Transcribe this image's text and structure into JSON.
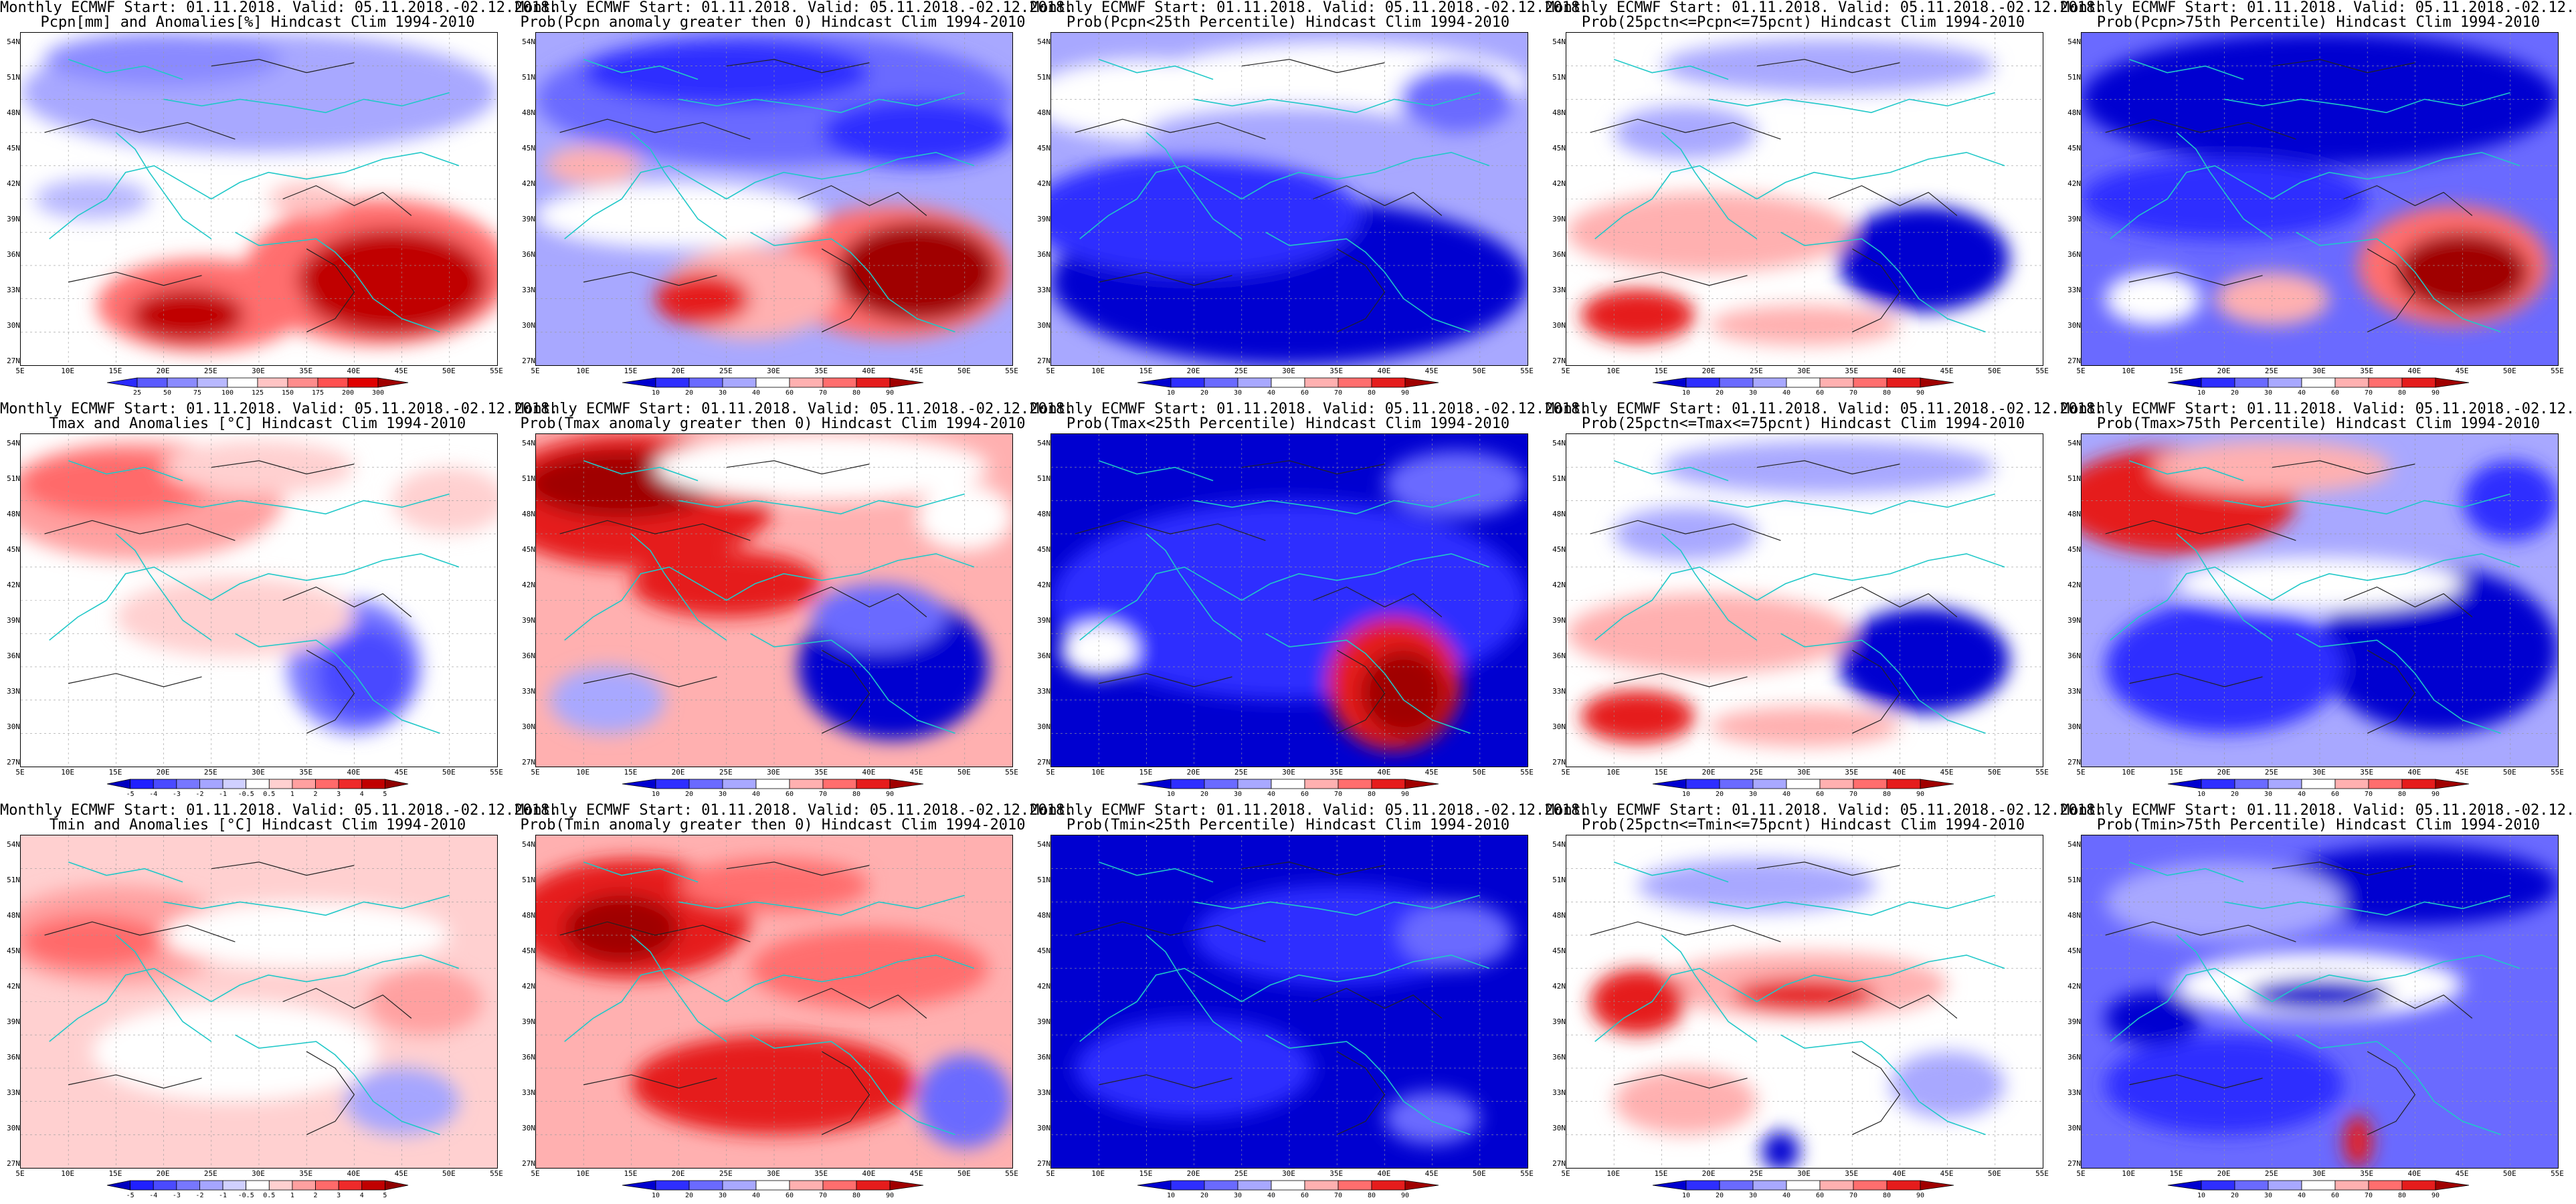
{
  "header_line": "Monthly ECMWF Start: 01.11.2018. Valid: 05.11.2018.-02.12.2018.",
  "lat_labels": [
    "54N",
    "51N",
    "48N",
    "45N",
    "42N",
    "39N",
    "36N",
    "33N",
    "30N",
    "27N"
  ],
  "lon_labels": [
    "5E",
    "10E",
    "15E",
    "20E",
    "25E",
    "30E",
    "35E",
    "40E",
    "45E",
    "50E",
    "55E"
  ],
  "colorbars": {
    "anom_pcpn": {
      "labels": [
        "25",
        "50",
        "75",
        "100",
        "125",
        "150",
        "175",
        "200",
        "300"
      ],
      "colors": [
        "#2a2aff",
        "#5a5aff",
        "#8a8aff",
        "#b8b8ff",
        "#ffffff",
        "#ffc4c4",
        "#ff8c8c",
        "#ff5050",
        "#e00000",
        "#a00000"
      ]
    },
    "prob": {
      "labels": [
        "10",
        "20",
        "30",
        "40",
        "60",
        "70",
        "80",
        "90"
      ],
      "colors": [
        "#0000d0",
        "#2e2eff",
        "#6a6aff",
        "#a8a8ff",
        "#ffffff",
        "#ffb0b0",
        "#ff6e6e",
        "#e51c1c",
        "#a00000"
      ]
    },
    "anom_t": {
      "labels": [
        "-5",
        "-4",
        "-3",
        "-2",
        "-1",
        "-0.5",
        "0.5",
        "1",
        "2",
        "3",
        "4",
        "5"
      ],
      "colors": [
        "#0000c0",
        "#2020ff",
        "#4a4aff",
        "#7777ff",
        "#a5a5ff",
        "#d0d0ff",
        "#ffffff",
        "#ffd0d0",
        "#ffa0a0",
        "#ff6a6a",
        "#ee2a2a",
        "#c00000",
        "#900000"
      ]
    }
  },
  "panels": [
    {
      "title": "Pcpn[mm] and Anomalies[%] Hindcast Clim 1994-2010",
      "cbar": "anom_pcpn",
      "theme": "red_south"
    },
    {
      "title": "Prob(Pcpn anomaly greater then 0) Hindcast Clim 1994-2010",
      "cbar": "prob",
      "theme": "red_south_blue_north"
    },
    {
      "title": "Prob(Pcpn<25th Percentile) Hindcast Clim 1994-2010",
      "cbar": "prob",
      "theme": "blue_south"
    },
    {
      "title": "Prob(25pctn<=Pcpn<=75pcnt) Hindcast Clim 1994-2010",
      "cbar": "prob",
      "theme": "mixed_blue_east"
    },
    {
      "title": "Prob(Pcpn>75th Percentile) Hindcast Clim 1994-2010",
      "cbar": "prob",
      "theme": "blue_north_red_se"
    },
    {
      "title": "Tmax and Anomalies [°C] Hindcast Clim 1994-2010",
      "cbar": "anom_t",
      "theme": "warm_nw_cool_se"
    },
    {
      "title": "Prob(Tmax anomaly greater then 0) Hindcast Clim 1994-2010",
      "cbar": "prob",
      "theme": "red_nw_blue_se"
    },
    {
      "title": "Prob(Tmax<25th Percentile) Hindcast Clim 1994-2010",
      "cbar": "prob",
      "theme": "blue_red_se"
    },
    {
      "title": "Prob(25pctn<=Tmax<=75pcnt) Hindcast Clim 1994-2010",
      "cbar": "prob",
      "theme": "mixed_blue_east"
    },
    {
      "title": "Prob(Tmax>75th Percentile) Hindcast Clim 1994-2010",
      "cbar": "prob",
      "theme": "red_nw_blue_e"
    },
    {
      "title": "Tmin and Anomalies [°C] Hindcast Clim 1994-2010",
      "cbar": "anom_t",
      "theme": "light_red"
    },
    {
      "title": "Prob(Tmin anomaly greater then 0) Hindcast Clim 1994-2010",
      "cbar": "prob",
      "theme": "red_all"
    },
    {
      "title": "Prob(Tmin<25th Percentile) Hindcast Clim 1994-2010",
      "cbar": "prob",
      "theme": "blue_all"
    },
    {
      "title": "Prob(25pctn<=Tmin<=75pcnt) Hindcast Clim 1994-2010",
      "cbar": "prob",
      "theme": "mixed_light"
    },
    {
      "title": "Prob(Tmin>75th Percentile) Hindcast Clim 1994-2010",
      "cbar": "prob",
      "theme": "blue_north_mixed"
    }
  ]
}
